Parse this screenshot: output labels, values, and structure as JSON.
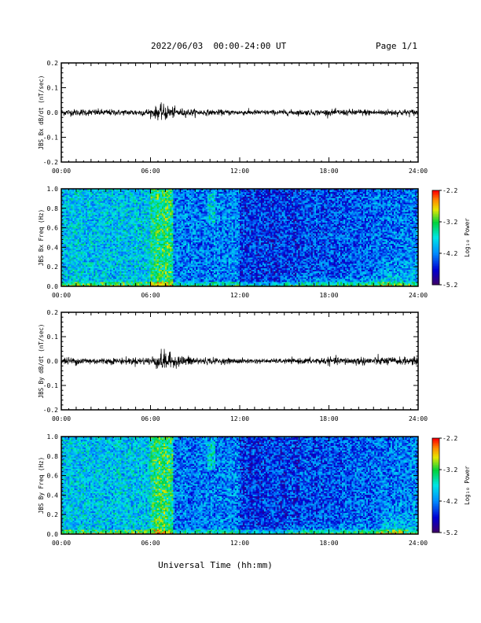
{
  "header": {
    "title": "2022/06/03  00:00-24:00 UT",
    "page": "Page 1/1"
  },
  "chart_data": [
    {
      "type": "line",
      "ylabel": "JBS Bx dB/dt (nT/sec)",
      "xlabel": "",
      "xlim": [
        0,
        24
      ],
      "ylim": [
        -0.2,
        0.2
      ],
      "y_ticks": [
        "-0.2",
        "-0.1",
        "0.0",
        "0.1",
        "0.2"
      ],
      "x_ticks": [
        "00:00",
        "06:00",
        "12:00",
        "18:00",
        "24:00"
      ],
      "series": [
        {
          "values_note": "",
          "x": [
            0,
            1,
            2,
            3,
            4,
            5,
            6,
            6.5,
            7,
            7.5,
            8,
            9,
            10,
            11,
            12,
            13,
            14,
            15,
            16,
            17,
            18,
            19,
            20,
            21,
            22,
            23,
            24
          ],
          "envelope": [
            0.012,
            0.012,
            0.012,
            0.012,
            0.01,
            0.012,
            0.014,
            0.025,
            0.03,
            0.02,
            0.015,
            0.012,
            0.01,
            0.01,
            0.01,
            0.01,
            0.009,
            0.01,
            0.01,
            0.01,
            0.011,
            0.011,
            0.012,
            0.012,
            0.012,
            0.012,
            0.012
          ]
        }
      ]
    },
    {
      "type": "heatmap",
      "ylabel": "JBS Bx Freq (Hz)",
      "xlabel": "",
      "xlim": [
        0,
        24
      ],
      "ylim": [
        0.0,
        1.0
      ],
      "y_ticks": [
        "0.0",
        "0.2",
        "0.4",
        "0.6",
        "0.8",
        "1.0"
      ],
      "x_ticks": [
        "00:00",
        "06:00",
        "12:00",
        "18:00",
        "24:00"
      ],
      "colorbar": {
        "label": "Log₁₀ Power",
        "range": [
          -5.2,
          -2.2
        ],
        "ticks": [
          "-2.2",
          "-3.2",
          "-4.2",
          "-5.2"
        ]
      }
    },
    {
      "type": "line",
      "ylabel": "JBS By dB/dt (nT/sec)",
      "xlabel": "",
      "xlim": [
        0,
        24
      ],
      "ylim": [
        -0.2,
        0.2
      ],
      "y_ticks": [
        "-0.2",
        "-0.1",
        "0.0",
        "0.1",
        "0.2"
      ],
      "x_ticks": [
        "00:00",
        "06:00",
        "12:00",
        "18:00",
        "24:00"
      ],
      "series": [
        {
          "values_note": "",
          "x": [
            0,
            1,
            2,
            3,
            4,
            5,
            6,
            6.5,
            7,
            7.5,
            8,
            9,
            10,
            11,
            12,
            13,
            14,
            15,
            16,
            17,
            18,
            19,
            20,
            21,
            22,
            23,
            24
          ],
          "envelope": [
            0.014,
            0.014,
            0.013,
            0.012,
            0.012,
            0.013,
            0.016,
            0.03,
            0.04,
            0.022,
            0.02,
            0.017,
            0.012,
            0.01,
            0.01,
            0.009,
            0.008,
            0.009,
            0.01,
            0.012,
            0.014,
            0.014,
            0.015,
            0.015,
            0.015,
            0.014,
            0.014
          ]
        }
      ]
    },
    {
      "type": "heatmap",
      "ylabel": "JBS By Freq (Hz)",
      "xlabel": "Universal Time (hh:mm)",
      "xlim": [
        0,
        24
      ],
      "ylim": [
        0.0,
        1.0
      ],
      "y_ticks": [
        "0.0",
        "0.2",
        "0.4",
        "0.6",
        "0.8",
        "1.0"
      ],
      "x_ticks": [
        "00:00",
        "06:00",
        "12:00",
        "18:00",
        "24:00"
      ],
      "colorbar": {
        "label": "Log₁₀ Power",
        "range": [
          -5.2,
          -2.2
        ],
        "ticks": [
          "-2.2",
          "-3.2",
          "-4.2",
          "-5.2"
        ]
      }
    }
  ]
}
